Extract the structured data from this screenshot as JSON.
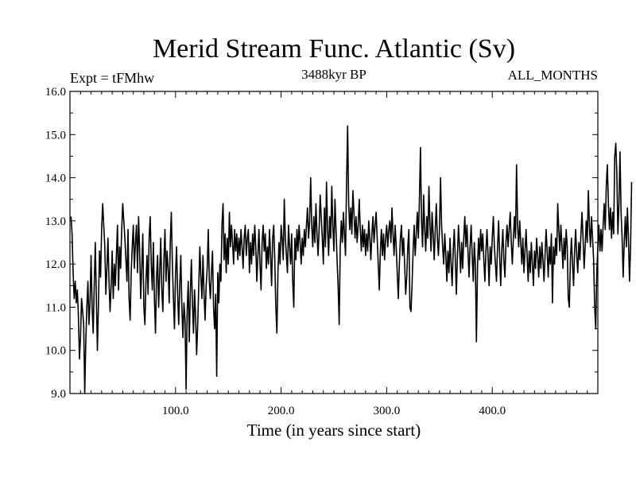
{
  "chart_data": {
    "type": "line",
    "title": "Merid Stream Func. Atlantic (Sv)",
    "subtitle_left": "Expt = tFMhw",
    "subtitle_center": "3488kyr BP",
    "subtitle_right": "ALL_MONTHS",
    "xlabel": "Time (in years since start)",
    "ylabel": "",
    "xlim": [
      0,
      500
    ],
    "ylim": [
      9.0,
      16.0
    ],
    "x_ticks": [
      100,
      200,
      300,
      400
    ],
    "x_tick_labels": [
      "100.0",
      "200.0",
      "300.0",
      "400.0"
    ],
    "y_ticks": [
      9,
      10,
      11,
      12,
      13,
      14,
      15,
      16
    ],
    "y_tick_labels": [
      "9.0",
      "10.0",
      "11.0",
      "12.0",
      "13.0",
      "14.0",
      "15.0",
      "16.0"
    ],
    "grid": false,
    "series": [
      {
        "name": "Merid Stream Func. Atlantic",
        "x_start": 1,
        "x_step": 1,
        "values": [
          13.1,
          12.7,
          11.8,
          11.2,
          11.6,
          11.1,
          11.4,
          10.8,
          9.8,
          10.3,
          11.2,
          10.9,
          10.6,
          9.0,
          10.2,
          11.0,
          11.6,
          10.6,
          11.1,
          12.2,
          11.0,
          10.4,
          11.5,
          12.5,
          11.2,
          10.0,
          11.1,
          12.3,
          11.7,
          12.8,
          13.4,
          12.9,
          12.4,
          11.3,
          11.9,
          12.6,
          11.6,
          10.9,
          11.5,
          12.3,
          11.2,
          12.0,
          11.5,
          12.2,
          12.9,
          11.4,
          12.4,
          11.9,
          12.8,
          13.4,
          13.0,
          12.6,
          12.1,
          11.6,
          12.8,
          11.2,
          10.7,
          11.8,
          12.4,
          12.9,
          11.9,
          12.5,
          12.9,
          11.8,
          13.1,
          12.3,
          11.2,
          11.9,
          12.7,
          11.0,
          10.6,
          11.6,
          12.2,
          11.3,
          12.6,
          13.1,
          12.0,
          11.4,
          12.5,
          11.2,
          10.4,
          11.7,
          12.2,
          11.0,
          11.8,
          12.6,
          11.4,
          10.9,
          12.1,
          12.8,
          11.6,
          12.3,
          11.9,
          11.1,
          12.5,
          13.2,
          12.0,
          11.2,
          10.5,
          11.8,
          12.4,
          11.3,
          10.6,
          11.5,
          12.2,
          11.0,
          10.3,
          11.1,
          10.7,
          9.1,
          10.9,
          11.6,
          10.2,
          11.3,
          12.1,
          11.1,
          10.4,
          11.4,
          10.8,
          9.9,
          10.6,
          11.5,
          12.4,
          11.7,
          11.2,
          12.2,
          11.3,
          10.7,
          11.5,
          11.9,
          12.8,
          11.6,
          11.2,
          11.8,
          12.3,
          11.0,
          10.5,
          11.3,
          9.4,
          11.8,
          11.1,
          12.0,
          11.6,
          12.9,
          13.4,
          12.1,
          12.7,
          11.8,
          12.6,
          12.0,
          13.2,
          12.4,
          12.9,
          12.5,
          12.0,
          12.8,
          12.3,
          12.7,
          12.1,
          12.6,
          12.2,
          12.8,
          12.4,
          11.9,
          12.6,
          12.9,
          12.2,
          12.6,
          12.8,
          11.8,
          12.5,
          12.0,
          12.7,
          12.2,
          12.9,
          12.4,
          11.6,
          12.2,
          12.8,
          12.0,
          11.4,
          12.5,
          12.9,
          12.3,
          12.7,
          11.9,
          12.4,
          12.0,
          12.8,
          12.2,
          11.5,
          12.6,
          12.9,
          12.1,
          11.0,
          10.4,
          11.8,
          12.5,
          12.0,
          12.9,
          12.6,
          12.1,
          13.5,
          12.6,
          12.2,
          11.8,
          12.9,
          12.4,
          12.0,
          12.7,
          11.6,
          11.0,
          12.6,
          12.1,
          12.8,
          12.3,
          12.9,
          12.5,
          12.0,
          12.6,
          12.2,
          12.8,
          12.4,
          12.9,
          13.3,
          12.6,
          13.0,
          14.0,
          12.9,
          12.4,
          13.1,
          12.5,
          13.4,
          12.7,
          12.2,
          12.8,
          13.6,
          13.1,
          12.6,
          12.0,
          13.3,
          12.4,
          13.9,
          12.8,
          12.2,
          13.1,
          12.6,
          13.8,
          12.9,
          12.3,
          13.5,
          12.8,
          12.1,
          11.5,
          10.6,
          12.4,
          13.0,
          12.5,
          13.2,
          12.7,
          12.2,
          13.9,
          15.2,
          13.4,
          12.8,
          13.3,
          12.7,
          13.7,
          13.2,
          12.6,
          13.1,
          12.5,
          12.9,
          13.5,
          12.8,
          12.3,
          12.9,
          12.4,
          12.8,
          12.2,
          12.7,
          12.3,
          13.0,
          12.6,
          12.1,
          12.7,
          13.1,
          12.5,
          12.9,
          13.2,
          12.6,
          12.0,
          11.4,
          12.3,
          12.8,
          12.2,
          12.7,
          12.1,
          12.6,
          12.9,
          12.4,
          12.8,
          13.0,
          12.5,
          13.3,
          12.7,
          12.2,
          12.9,
          12.4,
          11.8,
          11.2,
          12.0,
          12.6,
          12.9,
          12.2,
          12.6,
          12.0,
          11.3,
          11.7,
          12.4,
          12.8,
          11.0,
          10.9,
          11.5,
          12.3,
          12.9,
          12.2,
          12.7,
          13.2,
          12.6,
          13.5,
          14.7,
          13.0,
          12.4,
          13.6,
          12.8,
          12.3,
          13.1,
          12.6,
          13.8,
          12.9,
          12.3,
          13.2,
          12.7,
          12.1,
          12.8,
          13.4,
          12.6,
          12.2,
          12.8,
          14.0,
          12.9,
          12.4,
          12.0,
          12.7,
          12.2,
          11.6,
          12.3,
          11.8,
          12.6,
          12.0,
          11.5,
          12.3,
          12.8,
          12.1,
          11.3,
          12.2,
          12.9,
          12.4,
          11.8,
          12.5,
          11.9,
          12.6,
          13.1,
          12.4,
          12.9,
          12.3,
          11.7,
          12.4,
          12.9,
          12.2,
          11.6,
          12.5,
          12.0,
          10.2,
          11.9,
          12.6,
          12.1,
          12.8,
          12.3,
          12.7,
          12.1,
          11.6,
          12.3,
          12.8,
          12.2,
          11.5,
          12.4,
          12.0,
          12.6,
          13.1,
          12.4,
          12.0,
          11.6,
          12.4,
          13.0,
          12.2,
          11.5,
          12.3,
          12.8,
          12.1,
          11.7,
          12.5,
          12.9,
          12.4,
          12.8,
          13.2,
          12.5,
          12.0,
          12.6,
          13.1,
          12.6,
          14.3,
          12.9,
          12.4,
          13.0,
          12.5,
          12.0,
          12.6,
          11.8,
          12.3,
          12.8,
          12.2,
          11.6,
          12.3,
          11.8,
          12.5,
          12.0,
          11.5,
          12.3,
          11.9,
          12.6,
          12.2,
          11.7,
          12.4,
          11.9,
          12.5,
          12.1,
          11.6,
          12.2,
          12.8,
          12.3,
          11.7,
          12.4,
          12.0,
          12.7,
          11.1,
          12.4,
          12.0,
          12.6,
          12.2,
          13.4,
          12.8,
          12.3,
          12.9,
          12.4,
          11.9,
          12.6,
          12.1,
          12.8,
          12.4,
          11.2,
          11.0,
          12.1,
          12.6,
          12.0,
          11.5,
          12.3,
          12.8,
          12.2,
          11.8,
          12.5,
          12.1,
          12.7,
          13.2,
          12.6,
          11.9,
          12.4,
          13.0,
          12.5,
          13.7,
          12.9,
          12.4,
          13.1,
          12.6,
          12.1,
          11.0,
          10.5,
          11.8,
          12.4,
          12.9,
          12.3,
          12.8,
          12.3,
          12.9,
          13.4,
          12.8,
          13.8,
          14.3,
          13.4,
          12.8,
          13.3,
          12.6,
          13.2,
          12.7,
          14.5,
          14.8,
          14.1,
          12.7,
          13.4,
          14.6,
          13.2,
          12.6,
          11.7,
          12.5,
          13.1,
          12.4,
          13.3,
          12.6,
          11.6,
          12.4,
          13.9
        ]
      }
    ]
  }
}
